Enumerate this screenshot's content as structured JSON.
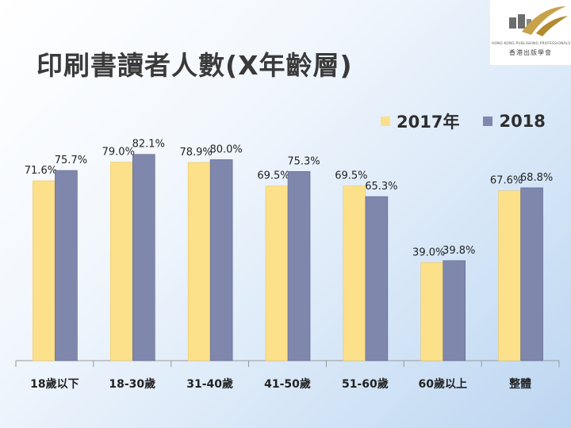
{
  "slide": {
    "title": "印刷書讀者人數(X年齡層)"
  },
  "logo": {
    "org_en": "HONG KONG PUBLISHING PROFESSIONALS SOCIETY",
    "org_zh": "香港出版學會"
  },
  "colors": {
    "series_2017": "#fde08a",
    "series_2018": "#7f87ad",
    "axis": "#999999",
    "logo_gold": "#c8a24a",
    "logo_dark": "#6d6d6d"
  },
  "chart_data": {
    "type": "bar",
    "title": "印刷書讀者人數(X年齡層)",
    "categories": [
      "18歲以下",
      "18-30歲",
      "31-40歲",
      "41-50歲",
      "51-60歲",
      "60歲以上",
      "整體"
    ],
    "series": [
      {
        "name": "2017年",
        "values": [
          71.6,
          79.0,
          78.9,
          69.5,
          69.5,
          39.0,
          67.6
        ],
        "labels": [
          "71.6%",
          "79.0%",
          "78.9%",
          "69.5%",
          "69.5%",
          "39.0%",
          "67.6%"
        ]
      },
      {
        "name": "2018",
        "values": [
          75.7,
          82.1,
          80.0,
          75.3,
          65.3,
          39.8,
          68.8
        ],
        "labels": [
          "75.7%",
          "82.1%",
          "80.0%",
          "75.3%",
          "65.3%",
          "39.8%",
          "68.8%"
        ]
      }
    ],
    "xlabel": "",
    "ylabel": "",
    "ylim": [
      0,
      100
    ],
    "legend_position": "top-right",
    "grid": false
  }
}
